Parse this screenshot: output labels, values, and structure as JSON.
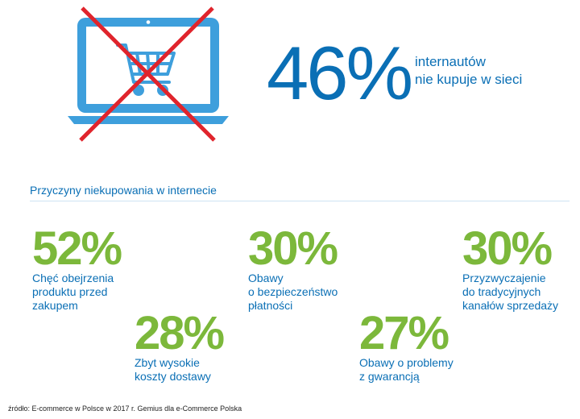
{
  "colors": {
    "blue": "#0a6fb5",
    "light_blue": "#3e9fdc",
    "green": "#7cb83b",
    "red": "#e0242c",
    "rule": "#cfe3f2"
  },
  "icons": {
    "laptop": "laptop-icon",
    "cart": "shopping-cart-icon",
    "cross": "red-x-cross-icon"
  },
  "hero": {
    "percent": "46%",
    "caption_line1": "internautów",
    "caption_line2": "nie kupuje w sieci"
  },
  "section_heading": "Przyczyny niekupowania w internecie",
  "stats": [
    {
      "value": "52%",
      "label": "Chęć obejrzenia\nproduktu przed\nzakupem"
    },
    {
      "value": "30%",
      "label": "Obawy\no bezpieczeństwo\npłatności"
    },
    {
      "value": "30%",
      "label": "Przyzwyczajenie\ndo tradycyjnych\nkanałów sprzedaży"
    },
    {
      "value": "28%",
      "label": "Zbyt wysokie\nkoszty dostawy"
    },
    {
      "value": "27%",
      "label": "Obawy o problemy\nz gwarancją"
    }
  ],
  "source": "źródło: E-commerce w Polsce w 2017 r. Gemius dla e-Commerce Polska"
}
